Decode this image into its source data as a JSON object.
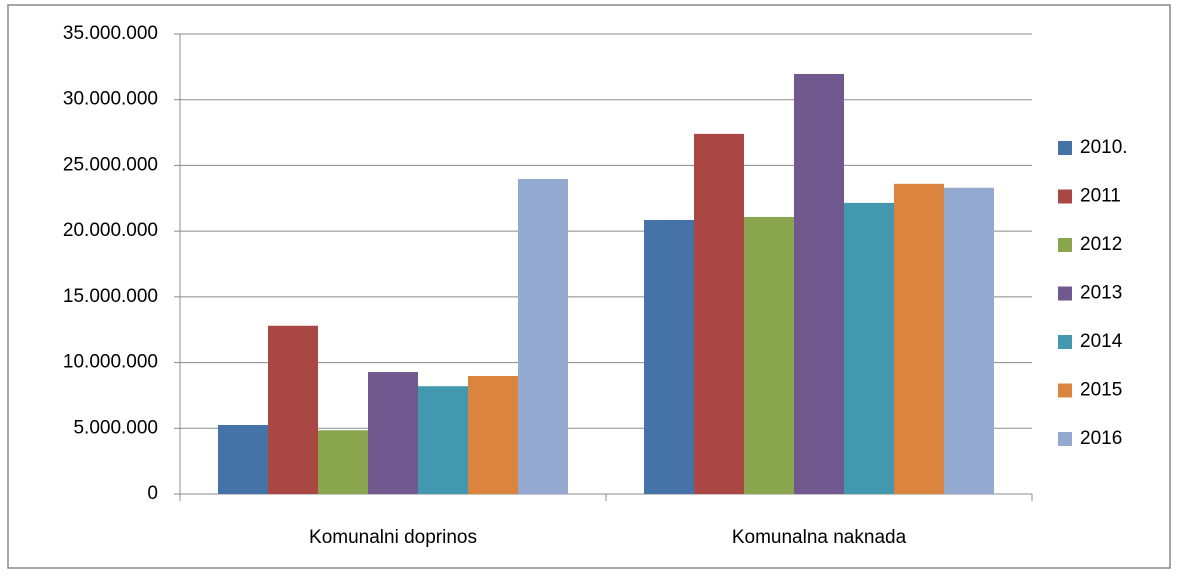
{
  "chart_data": {
    "type": "bar",
    "categories": [
      "Komunalni doprinos",
      "Komunalna naknada"
    ],
    "series": [
      {
        "name": "2010.",
        "color": "#4572a7",
        "values": [
          5250000,
          20850000
        ]
      },
      {
        "name": "2011",
        "color": "#aa4643",
        "values": [
          12800000,
          27400000
        ]
      },
      {
        "name": "2012",
        "color": "#89a54e",
        "values": [
          4850000,
          21080000
        ]
      },
      {
        "name": "2013",
        "color": "#71588f",
        "values": [
          9280000,
          31960000
        ]
      },
      {
        "name": "2014",
        "color": "#4198af",
        "values": [
          8200000,
          22150000
        ]
      },
      {
        "name": "2015",
        "color": "#db843d",
        "values": [
          8980000,
          23600000
        ]
      },
      {
        "name": "2016",
        "color": "#93a9cf",
        "values": [
          23970000,
          23300000
        ]
      }
    ],
    "ylim": [
      0,
      35000000
    ],
    "yticks": [
      0,
      {
        "value": 5000000,
        "label": "5.000.000"
      },
      {
        "value": 10000000,
        "label": "10.000.000"
      },
      {
        "value": 15000000,
        "label": "15.000.000"
      },
      {
        "value": 20000000,
        "label": "20.000.000"
      },
      {
        "value": 25000000,
        "label": "25.000.000"
      },
      {
        "value": 30000000,
        "label": "30.000.000"
      },
      {
        "value": 35000000,
        "label": "35.000.000"
      }
    ],
    "grid": true,
    "legend": "right"
  }
}
